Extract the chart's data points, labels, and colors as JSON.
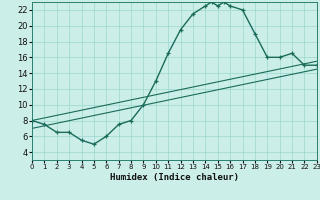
{
  "xlabel": "Humidex (Indice chaleur)",
  "bg_color": "#cceee8",
  "grid_color": "#99d8d0",
  "line_color": "#1a6b5a",
  "xlim": [
    0,
    23
  ],
  "ylim": [
    3,
    23
  ],
  "xticks": [
    0,
    1,
    2,
    3,
    4,
    5,
    6,
    7,
    8,
    9,
    10,
    11,
    12,
    13,
    14,
    15,
    16,
    17,
    18,
    19,
    20,
    21,
    22,
    23
  ],
  "yticks": [
    4,
    6,
    8,
    10,
    12,
    14,
    16,
    18,
    20,
    22
  ],
  "line1_x": [
    0,
    1,
    2,
    3,
    4,
    5,
    6,
    7,
    8,
    9,
    10,
    11,
    12,
    13,
    14,
    14.5,
    15,
    15.5,
    16,
    17,
    18,
    19,
    20,
    21,
    22,
    23
  ],
  "line1_y": [
    8,
    7.5,
    6.5,
    6.5,
    5.5,
    5,
    6,
    7.5,
    8,
    10,
    13,
    16.5,
    19.5,
    21.5,
    22.5,
    23,
    22.5,
    23,
    22.5,
    22,
    19,
    16,
    16,
    16.5,
    15,
    15
  ],
  "line2_x": [
    0,
    23
  ],
  "line2_y": [
    8,
    15.5
  ],
  "line3_x": [
    0,
    23
  ],
  "line3_y": [
    7,
    14.5
  ],
  "tick_fontsize_x": 5.0,
  "tick_fontsize_y": 6.0,
  "xlabel_fontsize": 6.5
}
